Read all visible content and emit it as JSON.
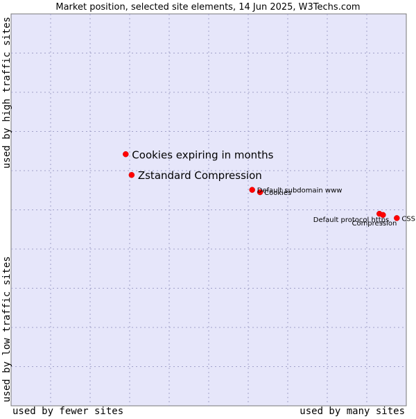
{
  "chart_data": {
    "type": "scatter",
    "title": "Market position, selected site elements, 14 Jun 2025, W3Techs.com",
    "xlabel_left": "used by fewer sites",
    "xlabel_right": "used by many sites",
    "ylabel_bottom": "used by low traffic sites",
    "ylabel_top": "used by high traffic sites",
    "xlim": [
      0,
      100
    ],
    "ylim": [
      0,
      100
    ],
    "grid": true,
    "points": [
      {
        "label": "Cookies expiring in months",
        "x": 29.0,
        "y": 64.2,
        "emphasis": true
      },
      {
        "label": "Zstandard Compression",
        "x": 30.5,
        "y": 58.9,
        "emphasis": true
      },
      {
        "label": "Default subdomain www",
        "x": 61.0,
        "y": 55.1,
        "emphasis": false
      },
      {
        "label": "Cookies",
        "x": 63.0,
        "y": 54.5,
        "emphasis": false
      },
      {
        "label": "Default protocol https",
        "x": 93.2,
        "y": 49.0,
        "emphasis": false
      },
      {
        "label": "Compression",
        "x": 94.1,
        "y": 48.7,
        "emphasis": false
      },
      {
        "label": "CSS",
        "x": 97.6,
        "y": 47.9,
        "emphasis": false
      }
    ]
  },
  "colors": {
    "plot_bg": "#e6e6fa",
    "grid": "#a0a0c8",
    "point": "#ff0000",
    "text": "#000000"
  }
}
